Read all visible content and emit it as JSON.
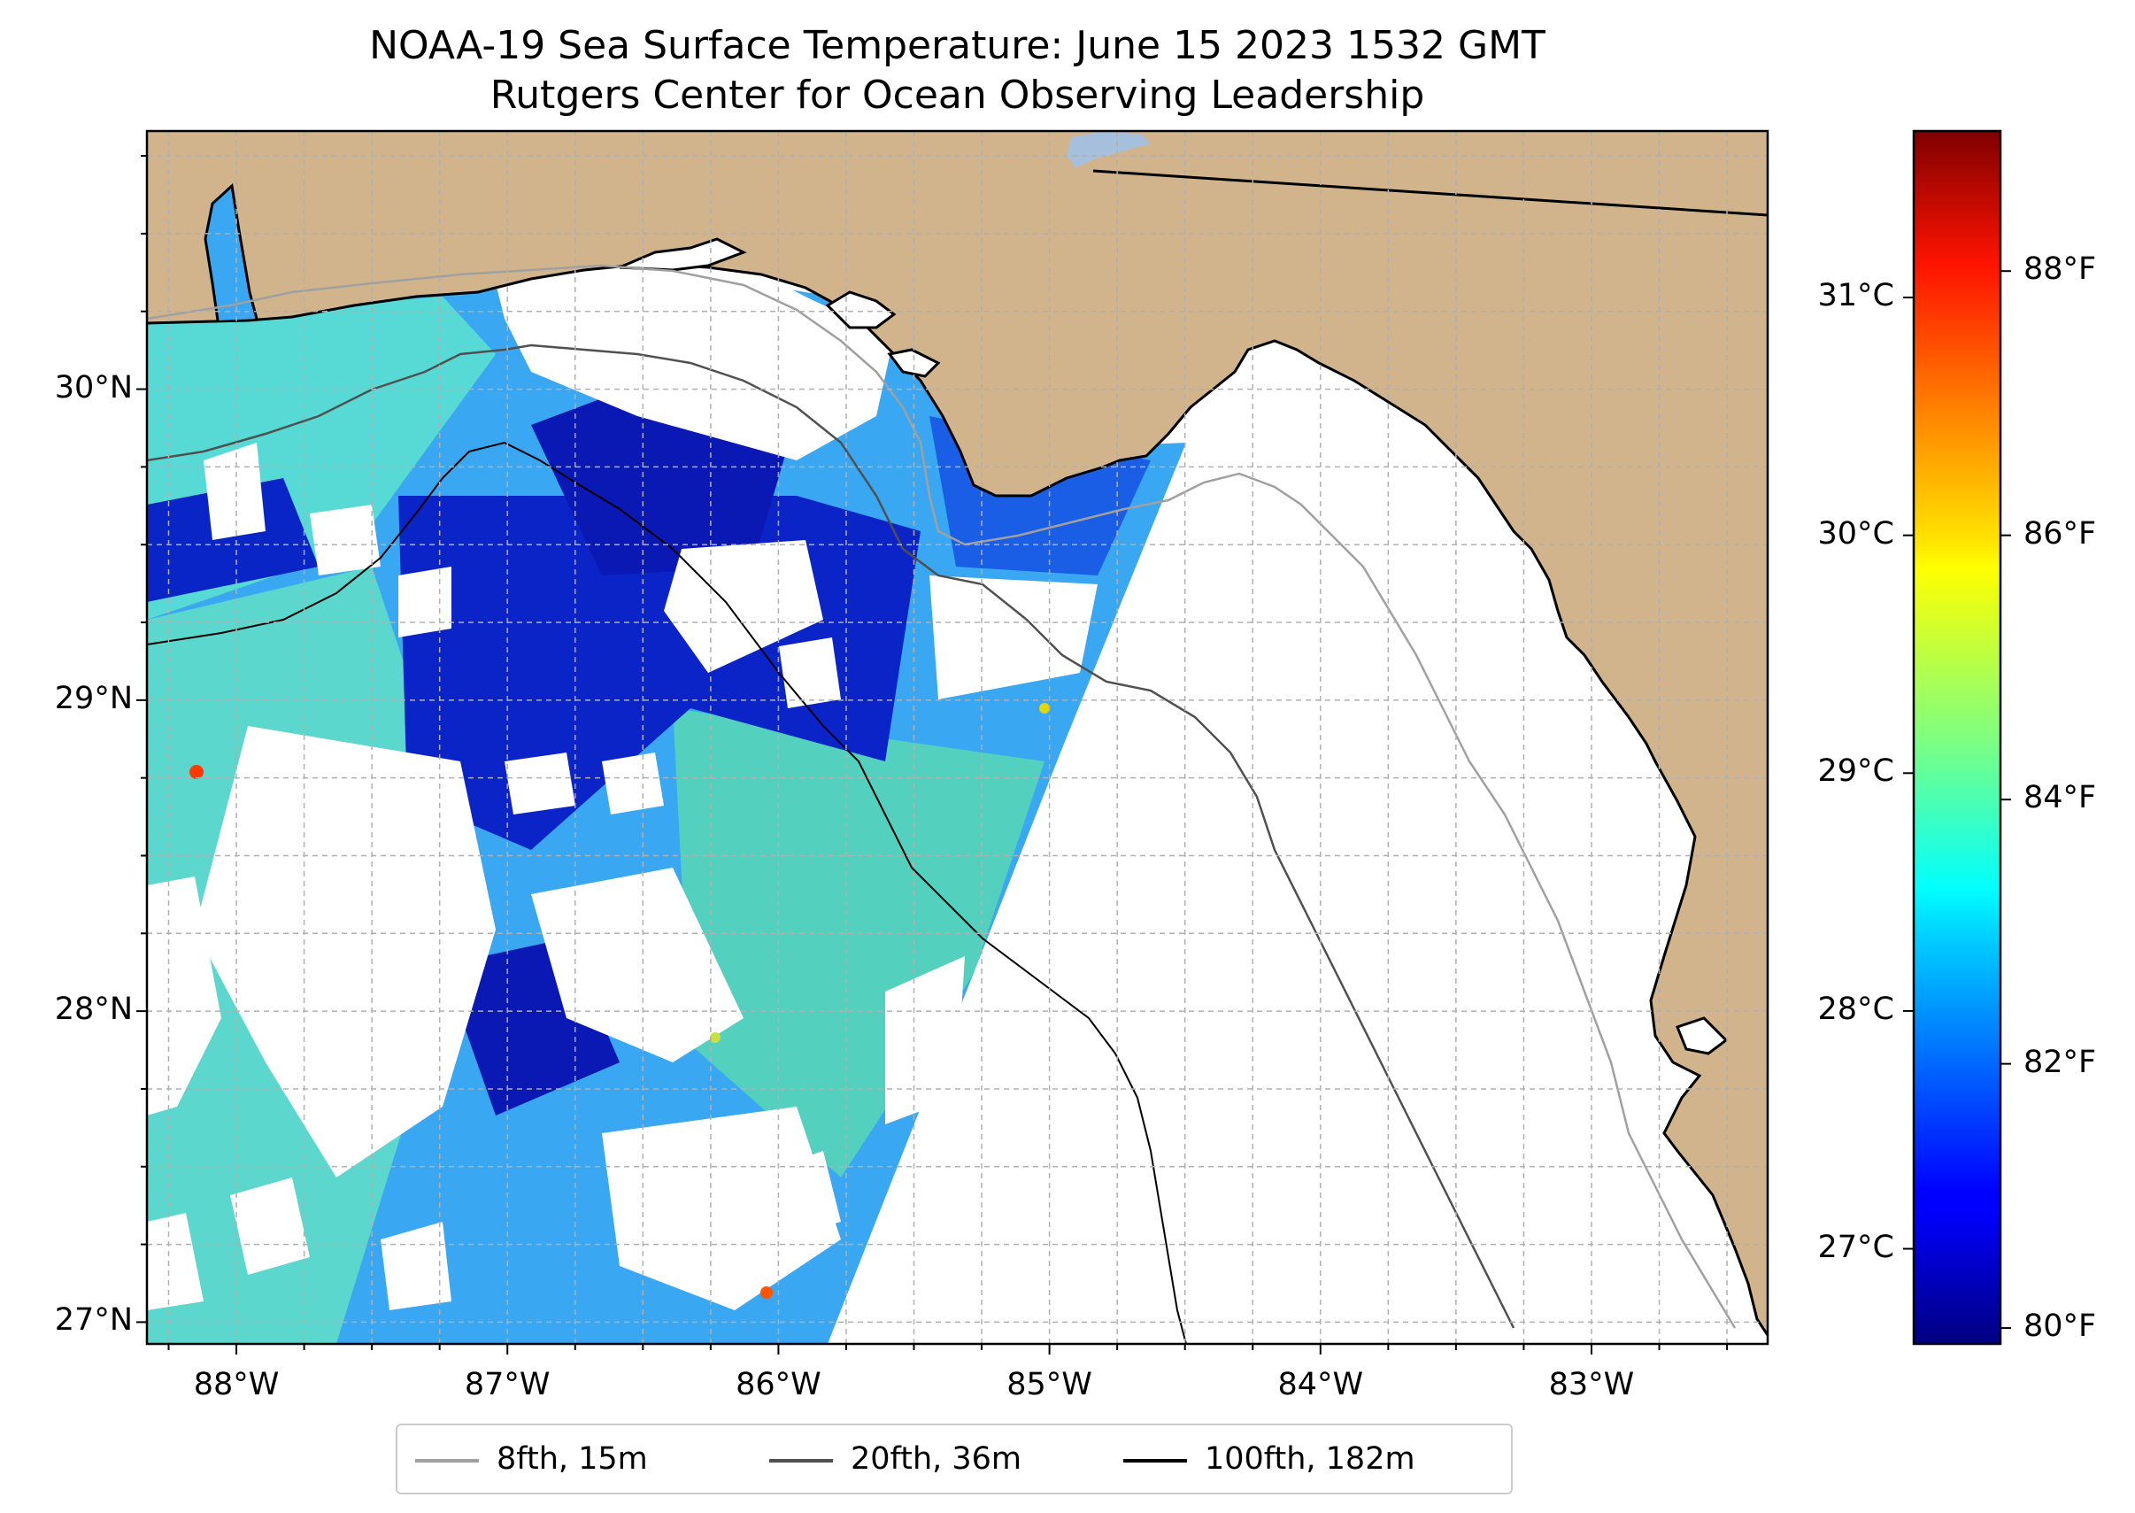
{
  "title": {
    "line1": "NOAA-19 Sea Surface Temperature: June 15 2023 1532 GMT",
    "line2": "Rutgers Center for Ocean Observing Leadership"
  },
  "colors": {
    "land": "#d2b48c",
    "lake": "#a5bfdd",
    "coast": "#000000",
    "grid": "#b0b0b0"
  },
  "map": {
    "lon_range": [
      -88.33,
      -82.35
    ],
    "lat_range": [
      26.93,
      30.83
    ],
    "lon_ticks": [
      {
        "value": -88,
        "label": "88°W"
      },
      {
        "value": -87,
        "label": "87°W"
      },
      {
        "value": -86,
        "label": "86°W"
      },
      {
        "value": -85,
        "label": "85°W"
      },
      {
        "value": -84,
        "label": "84°W"
      },
      {
        "value": -83,
        "label": "83°W"
      }
    ],
    "lat_ticks": [
      {
        "value": 27,
        "label": "27°N"
      },
      {
        "value": 28,
        "label": "28°N"
      },
      {
        "value": 29,
        "label": "29°N"
      },
      {
        "value": 30,
        "label": "30°N"
      }
    ]
  },
  "colorbar": {
    "colormap": "jet",
    "range_c": [
      26.6,
      31.7
    ],
    "celsius_ticks": [
      {
        "value": 27,
        "label": "27°C"
      },
      {
        "value": 28,
        "label": "28°C"
      },
      {
        "value": 29,
        "label": "29°C"
      },
      {
        "value": 30,
        "label": "30°C"
      },
      {
        "value": 31,
        "label": "31°C"
      }
    ],
    "fahrenheit_ticks": [
      {
        "value": 80,
        "label": "80°F"
      },
      {
        "value": 82,
        "label": "82°F"
      },
      {
        "value": 84,
        "label": "84°F"
      },
      {
        "value": 86,
        "label": "86°F"
      },
      {
        "value": 88,
        "label": "88°F"
      }
    ]
  },
  "legend": {
    "items": [
      {
        "label": "8fth, 15m",
        "color": "#a0a0a0"
      },
      {
        "label": "20fth, 36m",
        "color": "#505050"
      },
      {
        "label": "100fth, 182m",
        "color": "#000000"
      }
    ]
  }
}
